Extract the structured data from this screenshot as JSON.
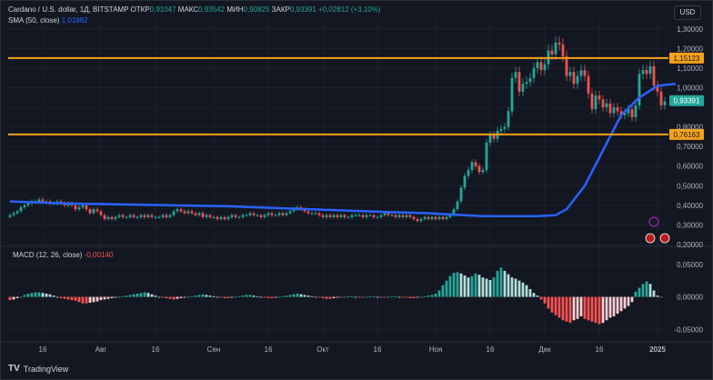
{
  "header": {
    "symbol": "Cardano / U.S. dollar, 1Д, BITSTAMP",
    "open_label": "ОТКР",
    "open": "0,91047",
    "high_label": "МАКС",
    "high": "0,93542",
    "low_label": "МИН",
    "low": "0,90825",
    "close_label": "ЗАКР",
    "close": "0,93391",
    "change": "+0,02812 (+3,10%)",
    "sma_label": "SMA (50, close)",
    "sma_value": "1,01882",
    "currency": "USD"
  },
  "macd_legend": {
    "label": "MACD (12, 26, close)",
    "value": "-0,00140"
  },
  "footer": {
    "brand": "TradingView"
  },
  "colors": {
    "up": "#26a69a",
    "down": "#ef5350",
    "sma": "#2962ff",
    "level": "#f7a21b",
    "bg": "#131722"
  },
  "chart_data": [
    {
      "type": "candlestick",
      "title": "",
      "ylim": [
        0.2,
        1.35
      ],
      "y_ticks": [
        "1,30000",
        "1,20000",
        "1,10000",
        "1,00000",
        "0,90000",
        "0,80000",
        "0,70000",
        "0,60000",
        "0,50000",
        "0,40000",
        "0,30000",
        "0,20000"
      ],
      "x_ticks": [
        {
          "label": "16",
          "i": 9
        },
        {
          "label": "Авг",
          "i": 25
        },
        {
          "label": "16",
          "i": 40
        },
        {
          "label": "Сен",
          "i": 56
        },
        {
          "label": "16",
          "i": 71
        },
        {
          "label": "Окт",
          "i": 86
        },
        {
          "label": "16",
          "i": 101
        },
        {
          "label": "Ноя",
          "i": 117
        },
        {
          "label": "16",
          "i": 132
        },
        {
          "label": "Дек",
          "i": 147
        },
        {
          "label": "16",
          "i": 162
        },
        {
          "label": "2025",
          "i": 178
        }
      ],
      "horizontal_levels": [
        1.15123,
        0.76163
      ],
      "level_labels": [
        "1,15123",
        "0,76163"
      ],
      "last_price": 0.93391,
      "last_price_label": "0,93391",
      "close_series": [
        0.35,
        0.36,
        0.37,
        0.39,
        0.4,
        0.41,
        0.42,
        0.42,
        0.43,
        0.42,
        0.42,
        0.41,
        0.41,
        0.42,
        0.41,
        0.4,
        0.41,
        0.4,
        0.38,
        0.39,
        0.4,
        0.38,
        0.36,
        0.38,
        0.37,
        0.35,
        0.33,
        0.34,
        0.33,
        0.34,
        0.35,
        0.34,
        0.34,
        0.35,
        0.34,
        0.34,
        0.35,
        0.34,
        0.35,
        0.34,
        0.34,
        0.34,
        0.35,
        0.34,
        0.35,
        0.37,
        0.38,
        0.37,
        0.36,
        0.37,
        0.36,
        0.35,
        0.36,
        0.34,
        0.35,
        0.34,
        0.34,
        0.33,
        0.34,
        0.33,
        0.34,
        0.35,
        0.34,
        0.34,
        0.35,
        0.35,
        0.36,
        0.35,
        0.35,
        0.34,
        0.35,
        0.36,
        0.35,
        0.35,
        0.36,
        0.35,
        0.36,
        0.37,
        0.38,
        0.39,
        0.38,
        0.37,
        0.36,
        0.36,
        0.36,
        0.35,
        0.34,
        0.35,
        0.34,
        0.35,
        0.34,
        0.35,
        0.34,
        0.34,
        0.35,
        0.35,
        0.35,
        0.34,
        0.35,
        0.35,
        0.34,
        0.34,
        0.35,
        0.36,
        0.35,
        0.35,
        0.34,
        0.35,
        0.34,
        0.35,
        0.34,
        0.33,
        0.32,
        0.33,
        0.34,
        0.33,
        0.34,
        0.33,
        0.34,
        0.33,
        0.34,
        0.35,
        0.38,
        0.42,
        0.49,
        0.55,
        0.58,
        0.62,
        0.6,
        0.57,
        0.58,
        0.72,
        0.76,
        0.74,
        0.78,
        0.79,
        0.8,
        0.88,
        1.05,
        1.08,
        0.98,
        1.02,
        1.03,
        1.05,
        1.1,
        1.13,
        1.09,
        1.12,
        1.19,
        1.17,
        1.23,
        1.22,
        1.16,
        1.06,
        1.08,
        1.02,
        1.06,
        1.09,
        1.06,
        0.97,
        0.89,
        0.96,
        0.94,
        0.9,
        0.92,
        0.87,
        0.9,
        0.88,
        0.86,
        0.87,
        0.89,
        0.85,
        0.91,
        1.07,
        1.09,
        1.07,
        1.11,
        1.01,
        0.98,
        0.91,
        0.93
      ],
      "sma_series": [
        0.42,
        0.41,
        0.405,
        0.4,
        0.395,
        0.385,
        0.375,
        0.365,
        0.36,
        0.355,
        0.35,
        0.345,
        0.345,
        0.345,
        0.35,
        0.38,
        0.5,
        0.68,
        0.86,
        0.95,
        1.01,
        1.02
      ],
      "sma_index": [
        0,
        15,
        30,
        45,
        60,
        75,
        90,
        105,
        115,
        120,
        125,
        130,
        140,
        145,
        150,
        153,
        158,
        163,
        168,
        173,
        178,
        183
      ]
    },
    {
      "type": "bar",
      "title": "",
      "ylim": [
        -0.065,
        0.075
      ],
      "y_ticks": [
        "0,05000",
        "0,00000",
        "-0,05000"
      ],
      "histogram": [
        -0.005,
        -0.004,
        -0.002,
        0.0,
        0.003,
        0.005,
        0.006,
        0.007,
        0.007,
        0.006,
        0.005,
        0.004,
        0.002,
        0.0,
        -0.002,
        -0.003,
        -0.004,
        -0.005,
        -0.006,
        -0.008,
        -0.01,
        -0.01,
        -0.009,
        -0.008,
        -0.007,
        -0.005,
        -0.004,
        -0.003,
        -0.002,
        -0.001,
        0.0,
        0.001,
        0.002,
        0.003,
        0.004,
        0.005,
        0.006,
        0.007,
        0.006,
        0.004,
        0.002,
        0.0,
        -0.001,
        -0.002,
        -0.003,
        -0.004,
        -0.003,
        -0.002,
        -0.001,
        0.0,
        0.001,
        0.002,
        0.003,
        0.004,
        0.003,
        0.002,
        0.001,
        0.0,
        -0.001,
        -0.002,
        -0.002,
        -0.001,
        0.0,
        0.001,
        0.002,
        0.003,
        0.003,
        0.002,
        0.001,
        0.0,
        -0.001,
        -0.002,
        -0.002,
        -0.001,
        0.0,
        0.001,
        0.002,
        0.003,
        0.004,
        0.005,
        0.004,
        0.003,
        0.002,
        0.001,
        0.0,
        -0.001,
        -0.002,
        -0.003,
        -0.003,
        -0.002,
        -0.001,
        -0.001,
        0.0,
        0.001,
        0.001,
        0.0,
        -0.001,
        -0.001,
        0.0,
        0.001,
        0.001,
        0.0,
        -0.001,
        -0.001,
        0.0,
        0.001,
        0.001,
        0.0,
        -0.001,
        -0.001,
        -0.002,
        -0.002,
        -0.001,
        0.0,
        0.001,
        0.002,
        0.003,
        0.005,
        0.01,
        0.018,
        0.025,
        0.032,
        0.037,
        0.038,
        0.036,
        0.033,
        0.03,
        0.032,
        0.036,
        0.034,
        0.03,
        0.028,
        0.026,
        0.03,
        0.04,
        0.045,
        0.04,
        0.035,
        0.03,
        0.028,
        0.025,
        0.022,
        0.018,
        0.012,
        0.006,
        0.002,
        -0.004,
        -0.01,
        -0.018,
        -0.024,
        -0.028,
        -0.032,
        -0.036,
        -0.038,
        -0.04,
        -0.036,
        -0.034,
        -0.03,
        -0.034,
        -0.036,
        -0.038,
        -0.04,
        -0.042,
        -0.04,
        -0.036,
        -0.032,
        -0.03,
        -0.026,
        -0.022,
        -0.018,
        -0.014,
        -0.008,
        0.008,
        0.014,
        0.02,
        0.024,
        0.02,
        0.01,
        0.002,
        -0.001
      ]
    }
  ]
}
